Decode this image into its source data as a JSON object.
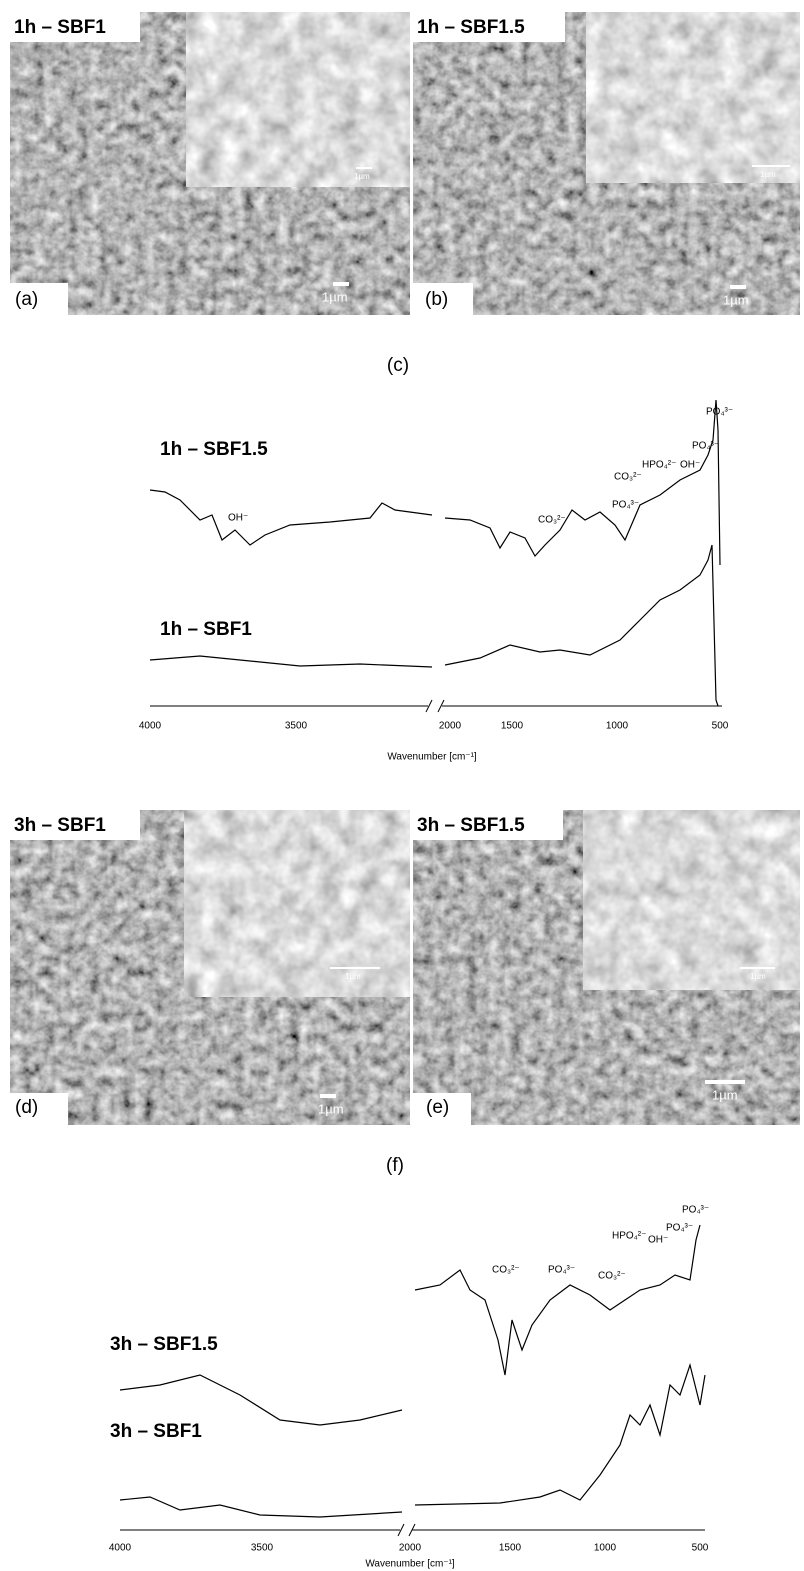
{
  "panels": [
    {
      "letter": "(a)",
      "sample": "1h – SBF1",
      "scale_bar": "1µm",
      "inset_scale_bar": "1µm"
    },
    {
      "letter": "(b)",
      "sample": "1h – SBF1.5",
      "scale_bar": "1µm",
      "inset_scale_bar": "1µm"
    },
    {
      "letter": "(d)",
      "sample": "3h – SBF1",
      "scale_bar": "1µm",
      "inset_scale_bar": "1µm"
    },
    {
      "letter": "(e)",
      "sample": "3h – SBF1.5",
      "scale_bar": "1µm",
      "inset_scale_bar": "1µm"
    }
  ],
  "spectra": [
    {
      "letter": "(c)",
      "traces": [
        "1h – SBF1.5",
        "1h – SBF1"
      ],
      "annotations": [
        "OH⁻",
        "CO₃²⁻",
        "PO₄³⁻",
        "CO₃²⁻",
        "HPO₄²⁻",
        "OH⁻",
        "PO₄³⁻",
        "PO₄³⁻"
      ],
      "x_ticks": [
        4000,
        3500,
        2000,
        1500,
        1000,
        500
      ],
      "x_label": "Wavenumber [cm⁻¹]"
    },
    {
      "letter": "(f)",
      "traces": [
        "3h – SBF1.5",
        "3h – SBF1"
      ],
      "annotations": [
        "CO₃²⁻",
        "PO₄³⁻",
        "CO₃²⁻",
        "HPO₄²⁻",
        "OH⁻",
        "PO₄³⁻",
        "PO₄³⁻"
      ],
      "x_ticks": [
        4000,
        3500,
        2000,
        1500,
        1000,
        500
      ],
      "x_label": "Wavenumber [cm⁻¹]"
    }
  ]
}
